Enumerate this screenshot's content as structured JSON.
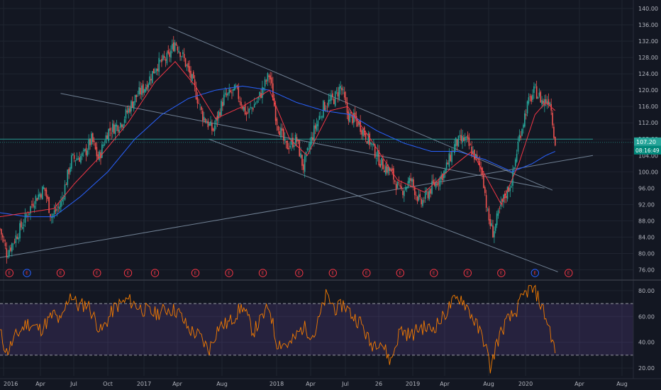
{
  "chart_data": [
    {
      "type": "candlestick",
      "title": "",
      "xlabel": "",
      "ylabel": "",
      "ylim": [
        74,
        140
      ],
      "x_ticks": [
        "2016",
        "Apr",
        "Jul",
        "Oct",
        "2017",
        "Apr",
        "Aug",
        "2018",
        "Apr",
        "Jul",
        "26",
        "2019",
        "Apr",
        "Aug",
        "2020",
        "Apr",
        "Aug"
      ],
      "y_ticks": [
        "76.00",
        "80.00",
        "84.00",
        "88.00",
        "92.00",
        "96.00",
        "100.00",
        "104.00",
        "108.00",
        "112.00",
        "116.00",
        "120.00",
        "124.00",
        "128.00",
        "132.00",
        "136.00",
        "140.00"
      ],
      "last_price": "107.20",
      "countdown": "08:16:49",
      "earnings_marker": "E",
      "earnings_count": 18,
      "price_path": [
        [
          2016.0,
          86
        ],
        [
          2016.05,
          80
        ],
        [
          2016.1,
          83
        ],
        [
          2016.18,
          88
        ],
        [
          2016.25,
          93
        ],
        [
          2016.33,
          96
        ],
        [
          2016.38,
          89
        ],
        [
          2016.45,
          92
        ],
        [
          2016.53,
          103
        ],
        [
          2016.62,
          104
        ],
        [
          2016.68,
          108
        ],
        [
          2016.73,
          103
        ],
        [
          2016.8,
          110
        ],
        [
          2016.9,
          112
        ],
        [
          2017.0,
          118
        ],
        [
          2017.08,
          121
        ],
        [
          2017.16,
          126
        ],
        [
          2017.25,
          128
        ],
        [
          2017.3,
          132
        ],
        [
          2017.36,
          128
        ],
        [
          2017.43,
          122
        ],
        [
          2017.5,
          114
        ],
        [
          2017.58,
          110
        ],
        [
          2017.66,
          118
        ],
        [
          2017.75,
          120
        ],
        [
          2017.83,
          114
        ],
        [
          2017.92,
          118
        ],
        [
          2018.0,
          124
        ],
        [
          2018.05,
          113
        ],
        [
          2018.12,
          106
        ],
        [
          2018.2,
          108
        ],
        [
          2018.25,
          101
        ],
        [
          2018.33,
          110
        ],
        [
          2018.4,
          116
        ],
        [
          2018.48,
          118
        ],
        [
          2018.53,
          121
        ],
        [
          2018.58,
          114
        ],
        [
          2018.66,
          112
        ],
        [
          2018.75,
          107
        ],
        [
          2018.83,
          102
        ],
        [
          2018.9,
          100
        ],
        [
          2018.97,
          95
        ],
        [
          2019.05,
          98
        ],
        [
          2019.12,
          92
        ],
        [
          2019.2,
          96
        ],
        [
          2019.3,
          100
        ],
        [
          2019.38,
          107
        ],
        [
          2019.45,
          108
        ],
        [
          2019.52,
          104
        ],
        [
          2019.58,
          100
        ],
        [
          2019.62,
          89
        ],
        [
          2019.66,
          85
        ],
        [
          2019.72,
          92
        ],
        [
          2019.8,
          98
        ],
        [
          2019.85,
          108
        ],
        [
          2019.91,
          116
        ],
        [
          2019.97,
          120
        ],
        [
          2020.03,
          117
        ],
        [
          2020.08,
          118
        ],
        [
          2020.12,
          107.2
        ]
      ],
      "ma_fast_path": [
        [
          2016.0,
          89
        ],
        [
          2016.2,
          90
        ],
        [
          2016.4,
          91
        ],
        [
          2016.55,
          97
        ],
        [
          2016.75,
          104
        ],
        [
          2016.95,
          112
        ],
        [
          2017.15,
          122
        ],
        [
          2017.3,
          127
        ],
        [
          2017.45,
          121
        ],
        [
          2017.6,
          113
        ],
        [
          2017.8,
          116
        ],
        [
          2018.0,
          120
        ],
        [
          2018.15,
          108
        ],
        [
          2018.28,
          104
        ],
        [
          2018.45,
          115
        ],
        [
          2018.58,
          116
        ],
        [
          2018.75,
          108
        ],
        [
          2018.95,
          98
        ],
        [
          2019.15,
          95
        ],
        [
          2019.35,
          101
        ],
        [
          2019.5,
          105
        ],
        [
          2019.62,
          98
        ],
        [
          2019.72,
          92
        ],
        [
          2019.85,
          102
        ],
        [
          2019.97,
          114
        ],
        [
          2020.05,
          117
        ],
        [
          2020.12,
          115
        ]
      ],
      "ma_slow_path": [
        [
          2016.0,
          90
        ],
        [
          2016.2,
          89
        ],
        [
          2016.4,
          89
        ],
        [
          2016.6,
          94
        ],
        [
          2016.8,
          100
        ],
        [
          2017.0,
          108
        ],
        [
          2017.2,
          114
        ],
        [
          2017.4,
          118
        ],
        [
          2017.6,
          120
        ],
        [
          2017.8,
          121
        ],
        [
          2018.0,
          120
        ],
        [
          2018.2,
          117
        ],
        [
          2018.4,
          115
        ],
        [
          2018.6,
          114
        ],
        [
          2018.8,
          110
        ],
        [
          2019.0,
          107
        ],
        [
          2019.2,
          105
        ],
        [
          2019.4,
          105
        ],
        [
          2019.6,
          103
        ],
        [
          2019.8,
          100
        ],
        [
          2019.95,
          102
        ],
        [
          2020.05,
          104
        ],
        [
          2020.12,
          105
        ]
      ],
      "trendlines": [
        {
          "name": "channel-top",
          "from": [
            2017.25,
            135.5
          ],
          "to": [
            2020.1,
            95.5
          ]
        },
        {
          "name": "channel-mid",
          "from": [
            2016.45,
            119.2
          ],
          "to": [
            2020.04,
            96.0
          ]
        },
        {
          "name": "channel-bottom",
          "from": [
            2017.55,
            108.0
          ],
          "to": [
            2020.14,
            75.5
          ]
        },
        {
          "name": "long-support",
          "from": [
            2016.0,
            79.0
          ],
          "to": [
            2020.4,
            104.0
          ]
        },
        {
          "name": "horizontal-level",
          "from": [
            2016.0,
            108.0
          ],
          "to": [
            2020.4,
            108.0
          ]
        }
      ],
      "earnings_times": [
        2016.07,
        2016.2,
        2016.45,
        2016.72,
        2016.95,
        2017.15,
        2017.45,
        2017.7,
        2017.95,
        2018.22,
        2018.47,
        2018.72,
        2018.97,
        2019.22,
        2019.47,
        2019.72,
        2019.97,
        2020.22
      ],
      "colors": {
        "up": "#26a69a",
        "down": "#ef5350",
        "ma_fast": "#f23645",
        "ma_slow": "#2962ff",
        "trendline": "#8fa3b8",
        "horizontal": "#26a69a",
        "last_price_bg": "#26a69a",
        "countdown_bg": "#00897b"
      }
    },
    {
      "type": "line",
      "title": "",
      "xlabel": "",
      "ylabel": "",
      "ylim": [
        14,
        86
      ],
      "y_ticks": [
        "20.00",
        "40.00",
        "60.00",
        "80.00"
      ],
      "overbought": 70,
      "oversold": 30,
      "colors": {
        "line": "#f57c00",
        "band": "#7e57c2"
      },
      "rsi_path": [
        [
          2016.0,
          48
        ],
        [
          2016.05,
          32
        ],
        [
          2016.12,
          45
        ],
        [
          2016.2,
          55
        ],
        [
          2016.3,
          50
        ],
        [
          2016.4,
          62
        ],
        [
          2016.45,
          55
        ],
        [
          2016.52,
          78
        ],
        [
          2016.58,
          68
        ],
        [
          2016.65,
          70
        ],
        [
          2016.75,
          48
        ],
        [
          2016.85,
          67
        ],
        [
          2016.95,
          73
        ],
        [
          2017.05,
          66
        ],
        [
          2017.15,
          62
        ],
        [
          2017.25,
          66
        ],
        [
          2017.32,
          64
        ],
        [
          2017.4,
          50
        ],
        [
          2017.48,
          45
        ],
        [
          2017.55,
          34
        ],
        [
          2017.62,
          52
        ],
        [
          2017.7,
          55
        ],
        [
          2017.8,
          68
        ],
        [
          2017.88,
          48
        ],
        [
          2018.0,
          68
        ],
        [
          2018.05,
          40
        ],
        [
          2018.15,
          38
        ],
        [
          2018.25,
          52
        ],
        [
          2018.33,
          45
        ],
        [
          2018.42,
          76
        ],
        [
          2018.5,
          65
        ],
        [
          2018.55,
          70
        ],
        [
          2018.62,
          60
        ],
        [
          2018.68,
          55
        ],
        [
          2018.75,
          38
        ],
        [
          2018.82,
          42
        ],
        [
          2018.9,
          25
        ],
        [
          2018.97,
          50
        ],
        [
          2019.05,
          45
        ],
        [
          2019.12,
          52
        ],
        [
          2019.2,
          50
        ],
        [
          2019.28,
          58
        ],
        [
          2019.35,
          70
        ],
        [
          2019.42,
          75
        ],
        [
          2019.48,
          65
        ],
        [
          2019.55,
          50
        ],
        [
          2019.6,
          40
        ],
        [
          2019.64,
          18
        ],
        [
          2019.68,
          38
        ],
        [
          2019.75,
          55
        ],
        [
          2019.82,
          62
        ],
        [
          2019.88,
          75
        ],
        [
          2019.93,
          82
        ],
        [
          2019.98,
          78
        ],
        [
          2020.03,
          65
        ],
        [
          2020.08,
          50
        ],
        [
          2020.12,
          32
        ]
      ]
    }
  ]
}
